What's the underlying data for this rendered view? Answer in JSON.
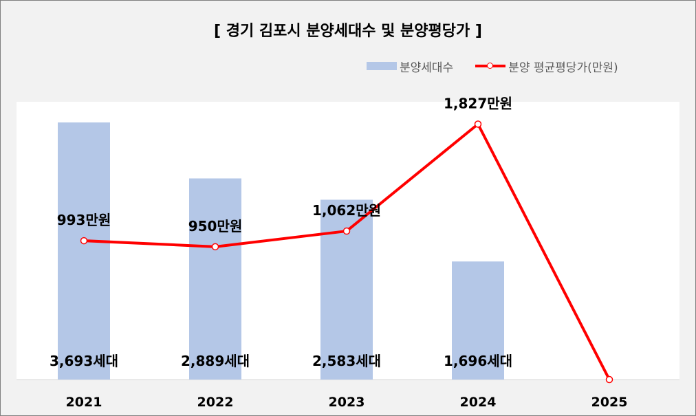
{
  "chart_data": {
    "type": "bar+line",
    "title": "[ 경기 김포시 분양세대수 및 분양평당가 ]",
    "categories": [
      "2021",
      "2022",
      "2023",
      "2024",
      "2025"
    ],
    "series": [
      {
        "name": "분양세대수",
        "type": "bar",
        "color": "#b4c7e7",
        "values": [
          3693,
          2889,
          2583,
          1696,
          null
        ],
        "labels": [
          "3,693세대",
          "2,889세대",
          "2,583세대",
          "1,696세대",
          ""
        ]
      },
      {
        "name": "분양 평균평당가(만원)",
        "type": "line",
        "color": "#ff0000",
        "values": [
          993,
          950,
          1062,
          1827,
          0
        ],
        "labels": [
          "993만원",
          "950만원",
          "1,062만원",
          "1,827만원",
          ""
        ]
      }
    ],
    "bar_ylim": [
      0,
      4000
    ],
    "line_ylim": [
      0,
      2000
    ],
    "grid": false,
    "legend_position": "top-right"
  }
}
